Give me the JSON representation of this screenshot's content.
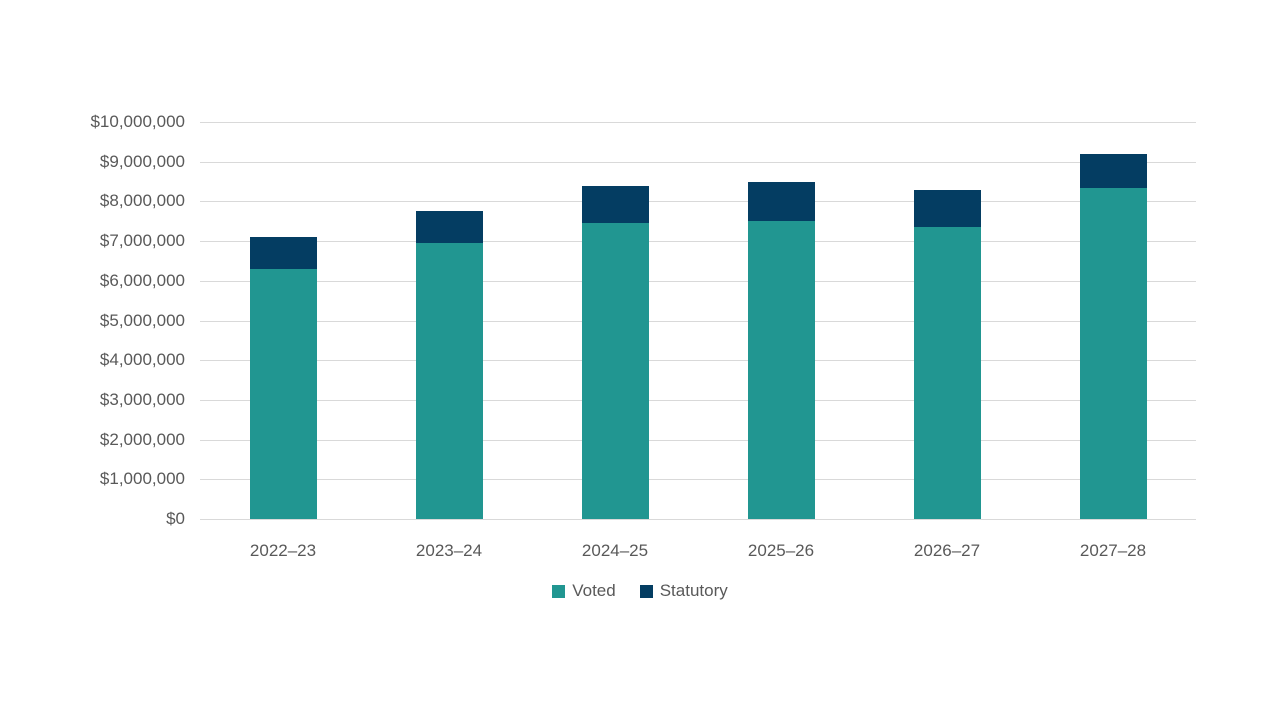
{
  "chart_data": {
    "type": "bar",
    "stacked": true,
    "title": "",
    "categories": [
      "2022–23",
      "2023–24",
      "2024–25",
      "2025–26",
      "2026–27",
      "2027–28"
    ],
    "series": [
      {
        "name": "Voted",
        "color": "#219691",
        "values": [
          6300000,
          6950000,
          7450000,
          7500000,
          7350000,
          8350000
        ]
      },
      {
        "name": "Statutory",
        "color": "#043d62",
        "values": [
          800000,
          800000,
          950000,
          1000000,
          950000,
          850000
        ]
      }
    ],
    "totals": [
      7100000,
      7750000,
      8400000,
      8500000,
      8300000,
      9200000
    ],
    "y_axis": {
      "min": 0,
      "max": 10000000,
      "tick_interval": 1000000,
      "tick_labels": [
        "$0",
        "$1,000,000",
        "$2,000,000",
        "$3,000,000",
        "$4,000,000",
        "$5,000,000",
        "$6,000,000",
        "$7,000,000",
        "$8,000,000",
        "$9,000,000",
        "$10,000,000"
      ]
    },
    "xlabel": "",
    "ylabel": "",
    "grid": true,
    "gridline_color": "#d9d9d9",
    "label_color": "#595959",
    "legend": {
      "position": "bottom",
      "entries": [
        "Voted",
        "Statutory"
      ]
    }
  }
}
